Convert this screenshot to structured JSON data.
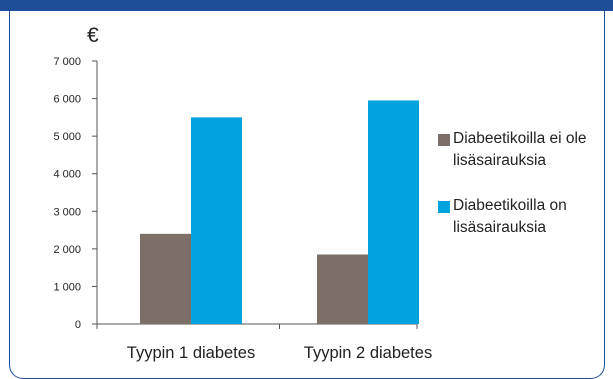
{
  "colors": {
    "band": "#1f4e99",
    "series1": "#7b6f67",
    "series2": "#00a3dd"
  },
  "unit_label": "€",
  "chart_data": {
    "type": "bar",
    "categories": [
      "Tyypin 1 diabetes",
      "Tyypin 2 diabetes"
    ],
    "series": [
      {
        "name": "Diabeetikoilla ei ole lisäsairauksia",
        "values": [
          2400,
          1850
        ]
      },
      {
        "name": "Diabeetikoilla on lisäsairauksia",
        "values": [
          5500,
          5950
        ]
      }
    ],
    "ylim": [
      0,
      7000
    ],
    "yticks": [
      0,
      1000,
      2000,
      3000,
      4000,
      5000,
      6000,
      7000
    ],
    "ytick_labels": [
      "0",
      "1 000",
      "2 000",
      "3 000",
      "4 000",
      "5 000",
      "6 000",
      "7 000"
    ],
    "legend": "right",
    "grid": false
  }
}
